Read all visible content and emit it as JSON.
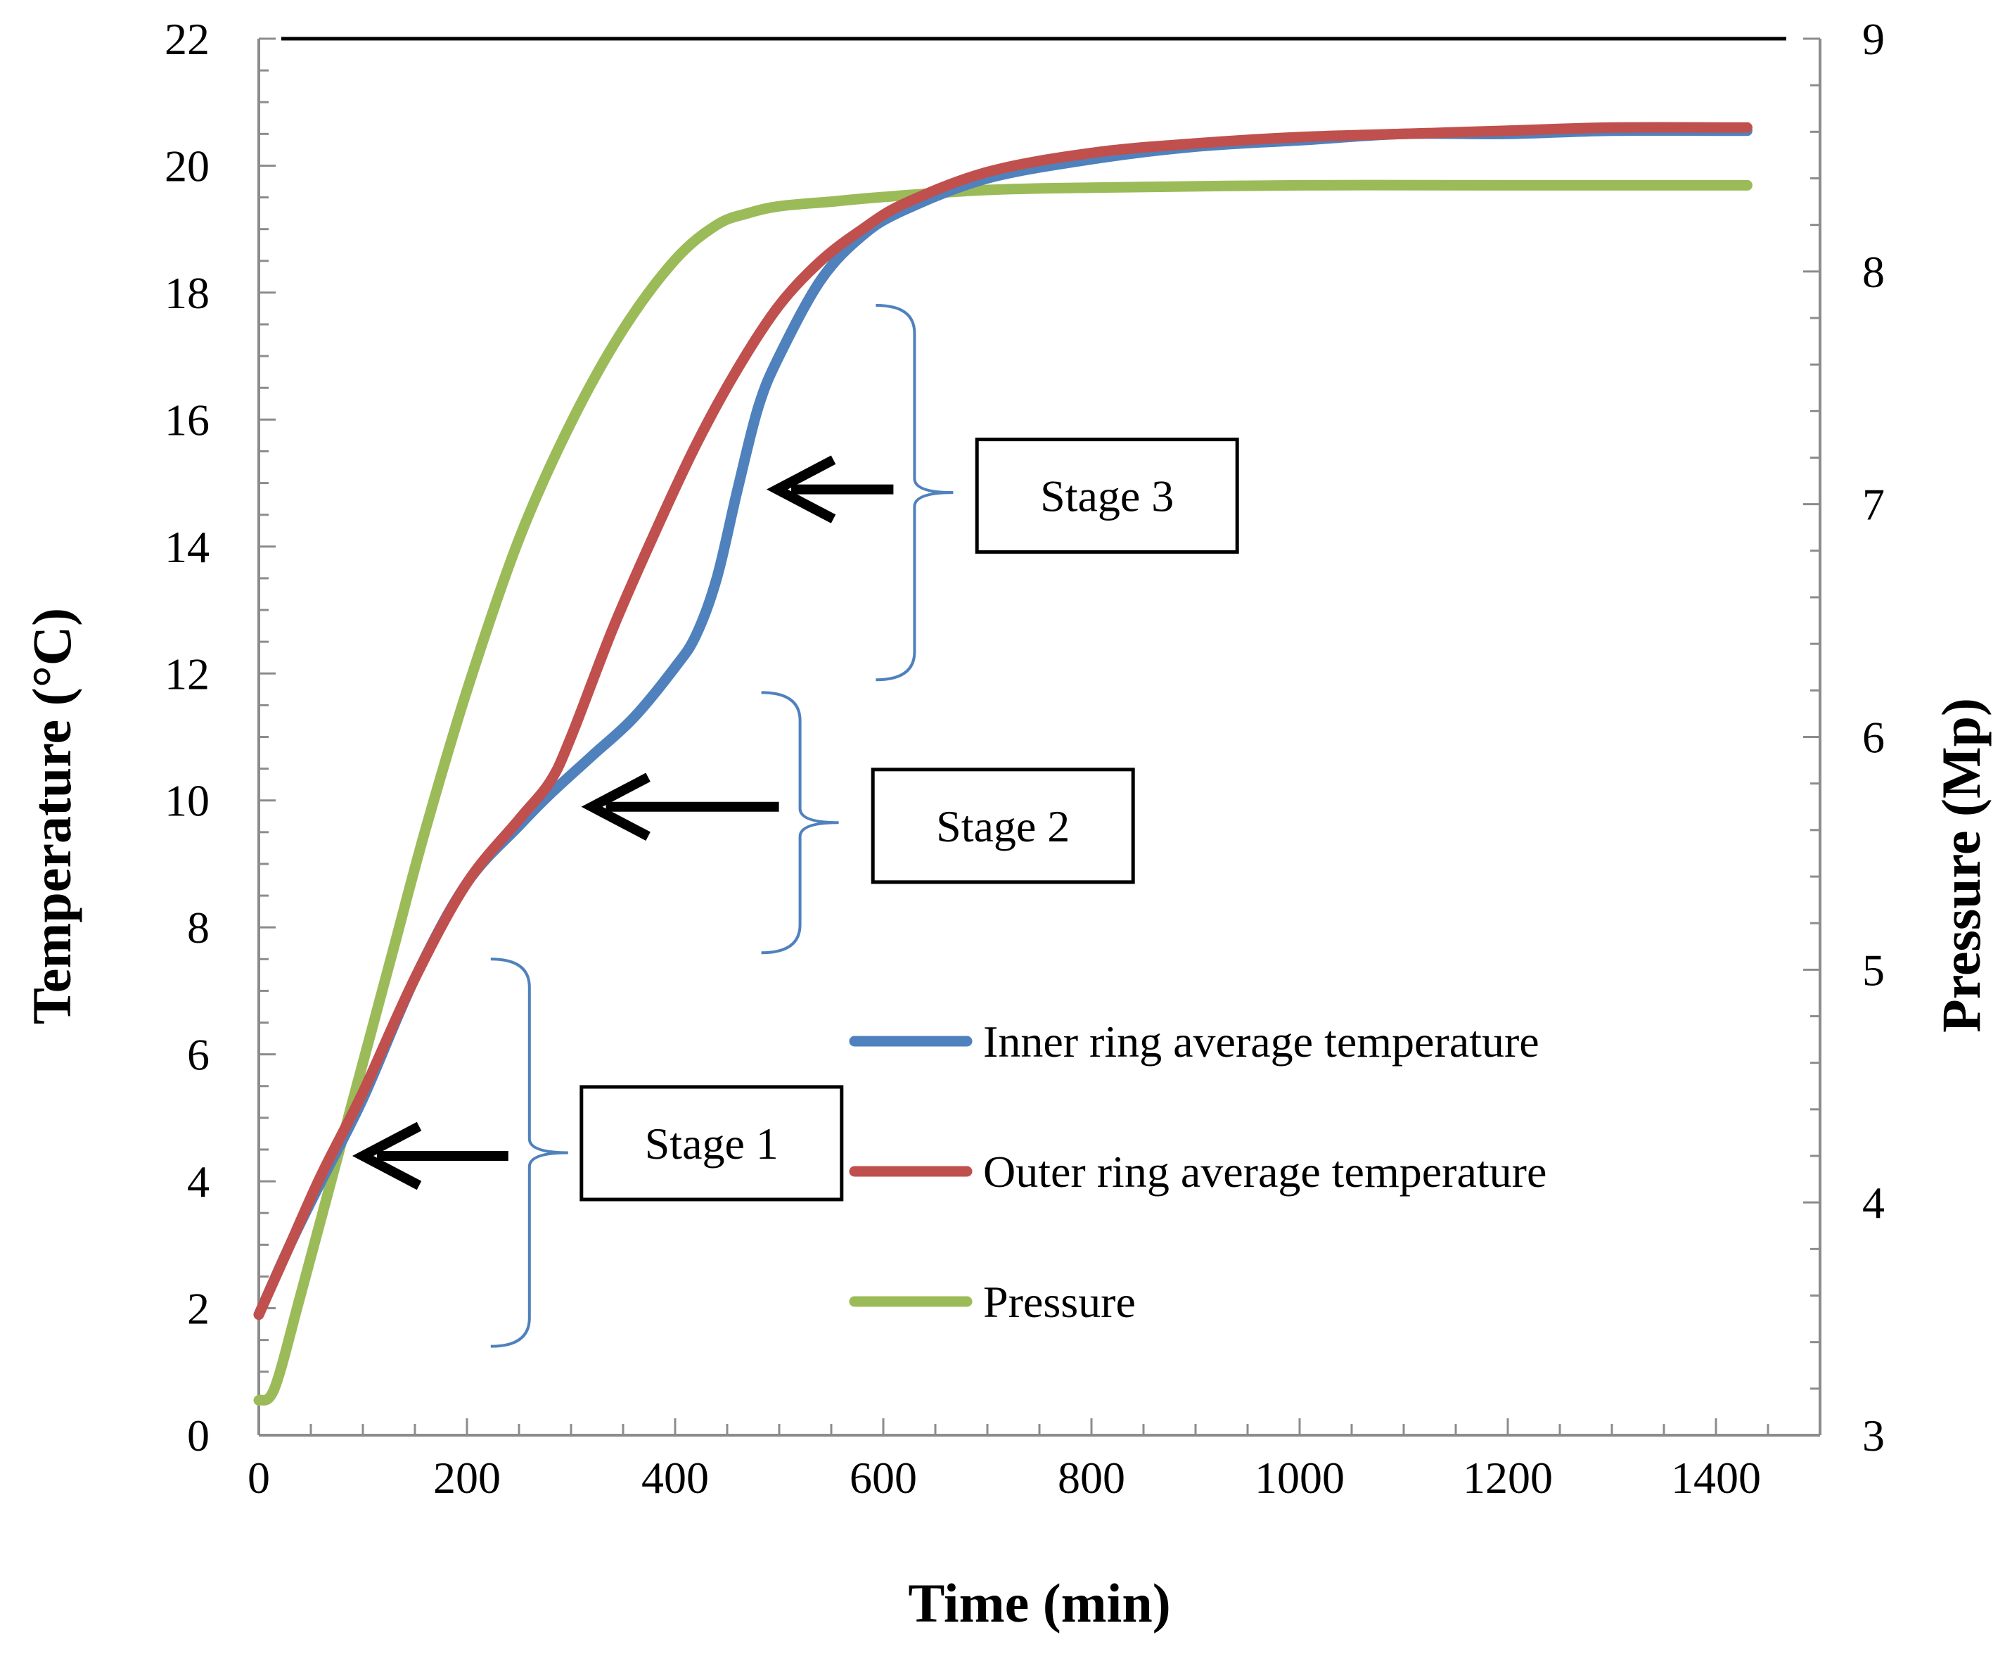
{
  "chart_data": {
    "type": "line",
    "title": "",
    "xlabel": "Time (min)",
    "ylabel": "Temperature (°C)",
    "y2label": "Pressure  (Mp)",
    "xlim": [
      0,
      1500
    ],
    "ylim": [
      0,
      22
    ],
    "y2lim": [
      3,
      9
    ],
    "xticks": [
      0,
      200,
      400,
      600,
      800,
      1000,
      1200,
      1400
    ],
    "yticks": [
      0,
      2,
      4,
      6,
      8,
      10,
      12,
      14,
      16,
      18,
      20,
      22
    ],
    "y2ticks": [
      3,
      4,
      5,
      6,
      7,
      8,
      9
    ],
    "grid": false,
    "legend_position": "center-right",
    "series": [
      {
        "name": "Inner ring average temperature",
        "axis": "left",
        "color": "#4F81BD",
        "x": [
          0,
          30,
          60,
          100,
          150,
          200,
          250,
          280,
          320,
          360,
          400,
          420,
          440,
          460,
          480,
          500,
          540,
          580,
          620,
          700,
          800,
          900,
          1000,
          1100,
          1200,
          1300,
          1430
        ],
        "y": [
          1.9,
          3.0,
          4.0,
          5.3,
          7.2,
          8.7,
          9.6,
          10.1,
          10.7,
          11.3,
          12.1,
          12.6,
          13.5,
          14.9,
          16.2,
          17.0,
          18.2,
          18.9,
          19.3,
          19.8,
          20.1,
          20.3,
          20.4,
          20.5,
          20.5,
          20.55,
          20.55
        ]
      },
      {
        "name": "Outer ring average temperature",
        "axis": "left",
        "color": "#C0504D",
        "x": [
          0,
          30,
          60,
          100,
          150,
          200,
          250,
          280,
          300,
          340,
          380,
          420,
          460,
          500,
          540,
          580,
          620,
          700,
          800,
          900,
          1000,
          1100,
          1200,
          1300,
          1430
        ],
        "y": [
          1.9,
          3.0,
          4.1,
          5.4,
          7.2,
          8.7,
          9.7,
          10.3,
          11.0,
          12.7,
          14.2,
          15.6,
          16.8,
          17.8,
          18.5,
          19.0,
          19.4,
          19.9,
          20.2,
          20.35,
          20.45,
          20.5,
          20.55,
          20.6,
          20.6
        ]
      },
      {
        "name": "Pressure",
        "axis": "right",
        "color": "#9BBB59",
        "x": [
          0,
          15,
          40,
          70,
          100,
          130,
          160,
          200,
          250,
          300,
          350,
          400,
          440,
          470,
          500,
          550,
          600,
          700,
          800,
          1000,
          1200,
          1430
        ],
        "y": [
          3.15,
          3.2,
          3.6,
          4.1,
          4.6,
          5.1,
          5.6,
          6.2,
          6.85,
          7.35,
          7.75,
          8.05,
          8.2,
          8.25,
          8.28,
          8.3,
          8.32,
          8.35,
          8.36,
          8.37,
          8.37,
          8.37
        ]
      }
    ],
    "annotations": [
      {
        "label": "Stage 1",
        "arrow_x": 100,
        "arrow_y": 4.4,
        "bracket_y_range": [
          1.4,
          7.5
        ],
        "bracket_x": 260,
        "box_x": 310,
        "box_y": 4.6
      },
      {
        "label": "Stage 2",
        "arrow_x": 320,
        "arrow_y": 9.9,
        "bracket_y_range": [
          7.6,
          11.7
        ],
        "bracket_x": 520,
        "box_x": 590,
        "box_y": 9.6
      },
      {
        "label": "Stage 3",
        "arrow_x": 498,
        "arrow_y": 14.9,
        "bracket_y_range": [
          11.9,
          17.8
        ],
        "bracket_x": 630,
        "box_x": 690,
        "box_y": 14.8
      }
    ]
  }
}
